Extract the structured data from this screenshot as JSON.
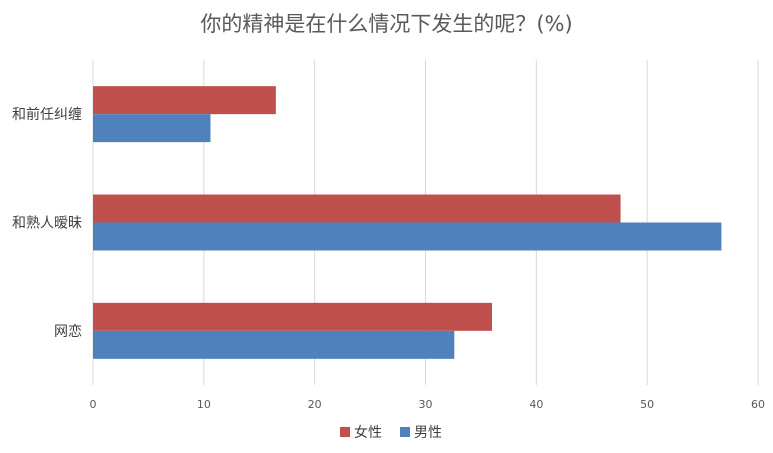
{
  "chart_data": {
    "type": "bar",
    "orientation": "horizontal",
    "title": "你的精神是在什么情况下发生的呢？(%)",
    "categories": [
      "和前任纠缠",
      "和熟人暧昧",
      "网恋"
    ],
    "series": [
      {
        "name": "女性",
        "color": "#c0504d",
        "values": [
          16.5,
          47.6,
          36.0
        ]
      },
      {
        "name": "男性",
        "color": "#4f81bd",
        "values": [
          10.6,
          56.7,
          32.6
        ]
      }
    ],
    "xlim": [
      0,
      60
    ],
    "xticks": [
      0,
      10,
      20,
      30,
      40,
      50,
      60
    ],
    "xlabel": "",
    "ylabel": "",
    "grid": true,
    "legend": "bottom"
  }
}
